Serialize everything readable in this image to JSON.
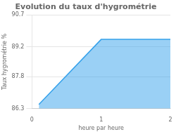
{
  "chart_data": {
    "type": "area",
    "title": "Evolution du taux d'hygrométrie",
    "xlabel": "heure par heure",
    "ylabel": "Taux hygrométrie %",
    "x": [
      0.1,
      1.0,
      2.0
    ],
    "values": [
      86.5,
      89.55,
      89.55
    ],
    "xlim": [
      0,
      2
    ],
    "xticks": [
      0,
      1,
      2
    ],
    "ylim": [
      86.3,
      90.7
    ],
    "yticks": [
      86.3,
      87.8,
      89.2,
      90.7
    ],
    "grid": "y"
  }
}
